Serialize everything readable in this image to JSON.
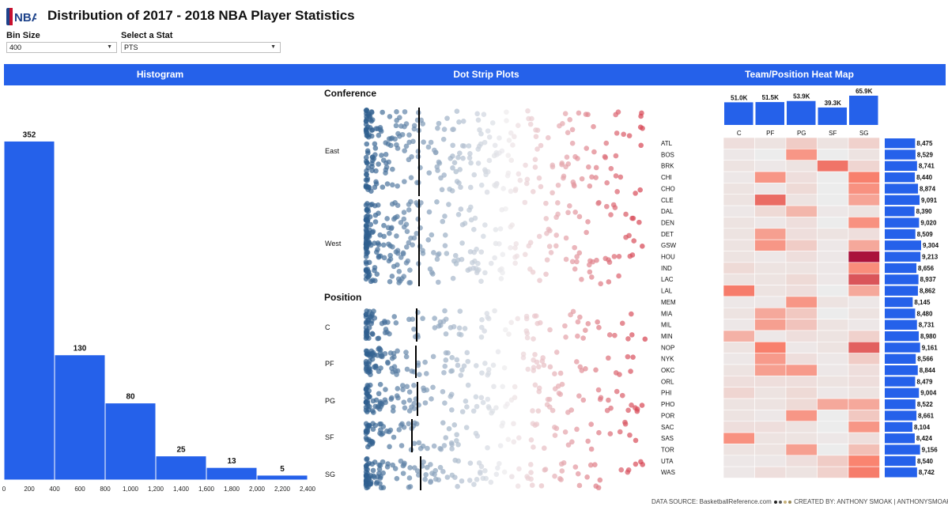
{
  "header": {
    "logo_text": "NBA",
    "title": "Distribution of 2017 - 2018 NBA Player Statistics"
  },
  "controls": {
    "bin_size": {
      "label": "Bin Size",
      "value": "400"
    },
    "stat": {
      "label": "Select a Stat",
      "value": "PTS"
    }
  },
  "sections": {
    "histogram": "Histogram",
    "strip": "Dot Strip Plots",
    "heatmap": "Team/Position Heat Map"
  },
  "strip": {
    "conference_title": "Conference",
    "position_title": "Position",
    "conference_rows": [
      "East",
      "West"
    ],
    "position_rows": [
      "C",
      "PF",
      "PG",
      "SF",
      "SG"
    ]
  },
  "chart_data": [
    {
      "type": "bar",
      "categories": [
        "0-400",
        "400-800",
        "800-1,200",
        "1,200-1,600",
        "1,600-2,000",
        "2,000-2,400"
      ],
      "values": [
        352,
        130,
        80,
        25,
        13,
        5
      ],
      "data_labels": [
        "352",
        "130",
        "80",
        "25",
        "13",
        "5"
      ],
      "x_ticks": [
        "0",
        "200",
        "400",
        "600",
        "800",
        "1,000",
        "1,200",
        "1,400",
        "1,600",
        "1,800",
        "2,000",
        "2,200",
        "2,400"
      ],
      "xlim": [
        0,
        2400
      ],
      "ylim": [
        0,
        400
      ],
      "color": "#2561ea",
      "grid": false
    },
    {
      "type": "heatmap",
      "positions": [
        "C",
        "PF",
        "PG",
        "SF",
        "SG"
      ],
      "position_totals": [
        51.0,
        51.5,
        53.9,
        39.3,
        65.9
      ],
      "position_total_labels": [
        "51.0K",
        "51.5K",
        "53.9K",
        "39.3K",
        "65.9K"
      ],
      "teams": [
        "ATL",
        "BOS",
        "BRK",
        "CHI",
        "CHO",
        "CLE",
        "DAL",
        "DEN",
        "DET",
        "GSW",
        "HOU",
        "IND",
        "LAC",
        "LAL",
        "MEM",
        "MIA",
        "MIL",
        "MIN",
        "NOP",
        "NYK",
        "OKC",
        "ORL",
        "PHI",
        "PHO",
        "POR",
        "SAC",
        "SAS",
        "TOR",
        "UTA",
        "WAS"
      ],
      "team_totals": [
        8475,
        8529,
        8741,
        8440,
        8874,
        9091,
        8390,
        9020,
        8509,
        9304,
        9213,
        8656,
        8937,
        8862,
        8145,
        8480,
        8731,
        8980,
        9161,
        8566,
        8844,
        8479,
        9004,
        8522,
        8661,
        8104,
        8424,
        9156,
        8540,
        8742
      ],
      "team_total_labels": [
        "8,475",
        "8,529",
        "8,741",
        "8,440",
        "8,874",
        "9,091",
        "8,390",
        "9,020",
        "8,509",
        "9,304",
        "9,213",
        "8,656",
        "8,937",
        "8,862",
        "8,145",
        "8,480",
        "8,731",
        "8,980",
        "9,161",
        "8,566",
        "8,844",
        "8,479",
        "9,004",
        "8,522",
        "8,661",
        "8,104",
        "8,424",
        "9,156",
        "8,540",
        "8,742"
      ],
      "values": [
        [
          1600,
          1500,
          2000,
          1500,
          1900
        ],
        [
          1400,
          1300,
          3200,
          1300,
          1500
        ],
        [
          1500,
          1400,
          1500,
          4000,
          1800
        ],
        [
          1400,
          3200,
          1600,
          1300,
          3700
        ],
        [
          1500,
          1400,
          1700,
          1300,
          3300
        ],
        [
          1500,
          4200,
          1500,
          1300,
          2900
        ],
        [
          1400,
          1700,
          2500,
          1400,
          1500
        ],
        [
          1500,
          1400,
          1600,
          1300,
          3300
        ],
        [
          1500,
          3000,
          1600,
          1500,
          1600
        ],
        [
          1500,
          3200,
          2000,
          1400,
          2800
        ],
        [
          1500,
          1400,
          1600,
          1400,
          6500
        ],
        [
          1700,
          1500,
          1500,
          1400,
          3400
        ],
        [
          1500,
          1500,
          1700,
          1400,
          4800
        ],
        [
          3800,
          1500,
          1600,
          1300,
          2800
        ],
        [
          1400,
          1400,
          3200,
          1500,
          1400
        ],
        [
          1500,
          2800,
          2100,
          1300,
          1500
        ],
        [
          1400,
          3000,
          2200,
          1500,
          1400
        ],
        [
          2600,
          1400,
          1600,
          1500,
          1900
        ],
        [
          1500,
          3700,
          1400,
          1500,
          4500
        ],
        [
          1400,
          3100,
          1600,
          1400,
          2000
        ],
        [
          1500,
          3000,
          3100,
          1400,
          1600
        ],
        [
          1600,
          1600,
          1600,
          1500,
          1600
        ],
        [
          1800,
          1500,
          1700,
          1400,
          1500
        ],
        [
          1500,
          1500,
          1700,
          2800,
          2800
        ],
        [
          1500,
          1400,
          3200,
          1300,
          2100
        ],
        [
          1600,
          1600,
          1500,
          1300,
          3200
        ],
        [
          3300,
          1500,
          1500,
          1400,
          1600
        ],
        [
          1500,
          1500,
          3000,
          1300,
          2300
        ],
        [
          1400,
          1400,
          1600,
          2000,
          3600
        ],
        [
          1400,
          1600,
          1500,
          1900,
          3800
        ]
      ]
    }
  ],
  "footer": {
    "source": "DATA SOURCE: BasketballReference.com",
    "credit": "CREATED BY: ANTHONY SMOAK | ANTHONYSMOAK.COM"
  },
  "colors": {
    "accent": "#2561ea",
    "strip_low": "#2e5e8e",
    "strip_high": "#d6404e"
  }
}
